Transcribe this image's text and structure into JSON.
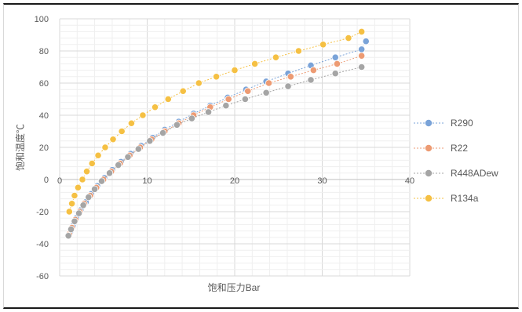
{
  "chart_data": {
    "type": "scatter",
    "xlabel": "饱和压力Bar",
    "ylabel": "饱和温度℃",
    "xlim": [
      0,
      40
    ],
    "ylim": [
      -60,
      100
    ],
    "x_ticks": [
      "0",
      "10",
      "20",
      "30",
      "40"
    ],
    "y_ticks": [
      "100",
      "80",
      "60",
      "40",
      "20",
      "0",
      "-20",
      "-40",
      "-60"
    ],
    "grid": true,
    "legend_position": "right",
    "series": [
      {
        "name": "R290",
        "color": "#7aa3d8",
        "points": [
          [
            1.2,
            -33
          ],
          [
            1.5,
            -29
          ],
          [
            1.9,
            -24
          ],
          [
            2.4,
            -19
          ],
          [
            3.0,
            -14
          ],
          [
            3.6,
            -9
          ],
          [
            4.3,
            -4
          ],
          [
            5.1,
            1
          ],
          [
            6.0,
            6
          ],
          [
            7.0,
            11
          ],
          [
            8.1,
            16
          ],
          [
            9.3,
            21
          ],
          [
            10.6,
            26
          ],
          [
            12.0,
            31
          ],
          [
            13.6,
            36
          ],
          [
            15.3,
            41
          ],
          [
            17.2,
            46
          ],
          [
            19.2,
            51
          ],
          [
            21.3,
            56
          ],
          [
            23.6,
            61
          ],
          [
            26.1,
            66
          ],
          [
            28.7,
            71
          ],
          [
            31.5,
            76
          ],
          [
            34.5,
            81
          ],
          [
            35.0,
            86
          ]
        ]
      },
      {
        "name": "R22",
        "color": "#ed9b73",
        "points": [
          [
            1.1,
            -34
          ],
          [
            1.4,
            -30
          ],
          [
            1.8,
            -25
          ],
          [
            2.3,
            -20
          ],
          [
            2.8,
            -15
          ],
          [
            3.5,
            -10
          ],
          [
            4.2,
            -5
          ],
          [
            5.0,
            0
          ],
          [
            5.9,
            5
          ],
          [
            6.9,
            10
          ],
          [
            8.0,
            15
          ],
          [
            9.2,
            20
          ],
          [
            10.5,
            25
          ],
          [
            12.0,
            30
          ],
          [
            13.6,
            35
          ],
          [
            15.3,
            40
          ],
          [
            17.2,
            45
          ],
          [
            19.3,
            50
          ],
          [
            21.5,
            55
          ],
          [
            23.9,
            60
          ],
          [
            26.4,
            64
          ],
          [
            29.0,
            68
          ],
          [
            31.7,
            72
          ],
          [
            34.5,
            77
          ]
        ]
      },
      {
        "name": "R448ADew",
        "color": "#a5a5a5",
        "points": [
          [
            1.0,
            -35
          ],
          [
            1.3,
            -31
          ],
          [
            1.7,
            -26
          ],
          [
            2.2,
            -21
          ],
          [
            2.7,
            -16
          ],
          [
            3.3,
            -11
          ],
          [
            4.0,
            -6
          ],
          [
            4.8,
            -1
          ],
          [
            5.7,
            4
          ],
          [
            6.7,
            9
          ],
          [
            7.8,
            14
          ],
          [
            9.0,
            19
          ],
          [
            10.3,
            24
          ],
          [
            11.8,
            29
          ],
          [
            13.4,
            34
          ],
          [
            15.1,
            38
          ],
          [
            17.0,
            42
          ],
          [
            19.0,
            46
          ],
          [
            21.2,
            50
          ],
          [
            23.6,
            54
          ],
          [
            26.1,
            58
          ],
          [
            28.7,
            62
          ],
          [
            31.5,
            66
          ],
          [
            34.5,
            70
          ]
        ]
      },
      {
        "name": "R134a",
        "color": "#f5c043",
        "points": [
          [
            1.1,
            -20
          ],
          [
            1.4,
            -15
          ],
          [
            1.7,
            -10
          ],
          [
            2.1,
            -5
          ],
          [
            2.6,
            0
          ],
          [
            3.1,
            5
          ],
          [
            3.7,
            10
          ],
          [
            4.4,
            15
          ],
          [
            5.2,
            20
          ],
          [
            6.1,
            25
          ],
          [
            7.1,
            30
          ],
          [
            8.2,
            35
          ],
          [
            9.5,
            40
          ],
          [
            10.9,
            45
          ],
          [
            12.4,
            50
          ],
          [
            14.1,
            55
          ],
          [
            15.9,
            60
          ],
          [
            17.9,
            64
          ],
          [
            20.0,
            68
          ],
          [
            22.3,
            72
          ],
          [
            24.7,
            76
          ],
          [
            27.3,
            80
          ],
          [
            30.1,
            84
          ],
          [
            33.0,
            88
          ],
          [
            34.5,
            92
          ]
        ]
      }
    ]
  }
}
